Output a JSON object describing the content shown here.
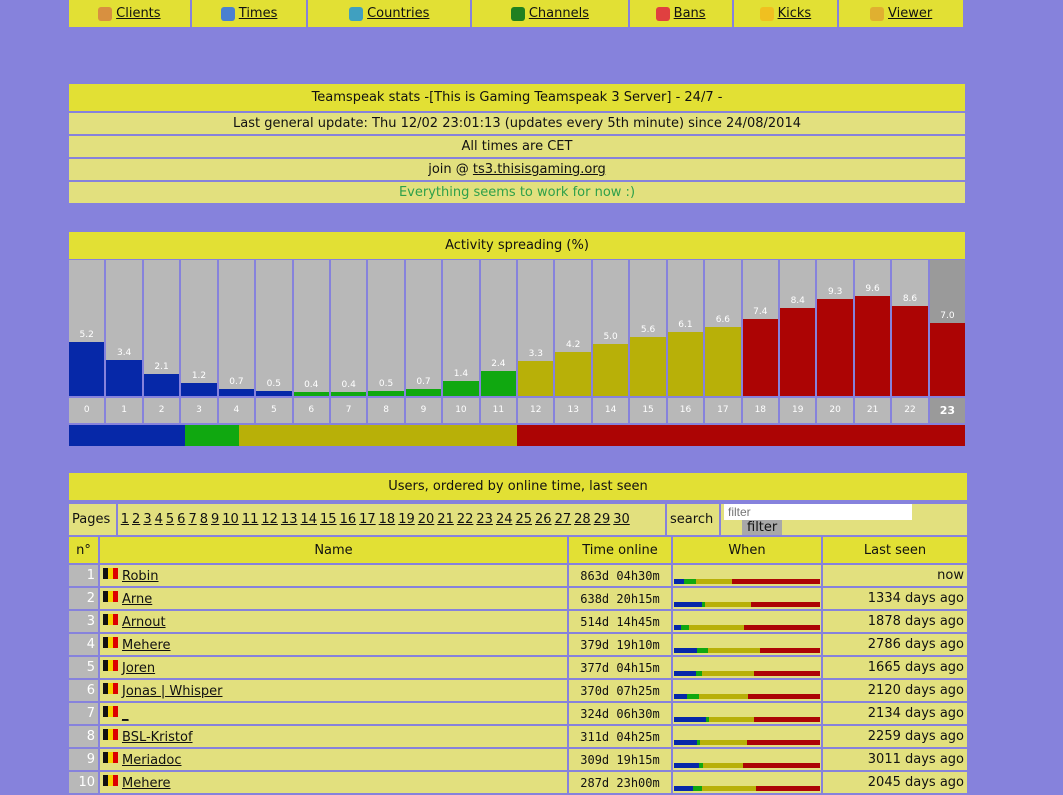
{
  "nav": [
    {
      "label": "Clients",
      "icon": "users-icon",
      "color": "#d89040"
    },
    {
      "label": "Times",
      "icon": "bar-chart-icon",
      "color": "#4a80d0"
    },
    {
      "label": "Countries",
      "icon": "globe-icon",
      "color": "#40a0c0"
    },
    {
      "label": "Channels",
      "icon": "channels-icon",
      "color": "#208020"
    },
    {
      "label": "Bans",
      "icon": "ban-icon",
      "color": "#e04040"
    },
    {
      "label": "Kicks",
      "icon": "warning-icon",
      "color": "#f0c020"
    },
    {
      "label": "Viewer",
      "icon": "magnifier-icon",
      "color": "#e0b030"
    }
  ],
  "info": {
    "title": "Teamspeak stats -[This is Gaming Teamspeak 3 Server] - 24/7 -",
    "update": "Last general update: Thu 12/02 23:01:13 (updates every 5th minute) since 24/08/2014",
    "tz": "All times are CET",
    "join_prefix": "join @ ",
    "join_link": "ts3.thisisgaming.org",
    "status": "Everything seems to work for now :)"
  },
  "chart_data": {
    "type": "bar",
    "title": "Activity spreading (%)",
    "categories": [
      "0",
      "1",
      "2",
      "3",
      "4",
      "5",
      "6",
      "7",
      "8",
      "9",
      "10",
      "11",
      "12",
      "13",
      "14",
      "15",
      "16",
      "17",
      "18",
      "19",
      "20",
      "21",
      "22",
      "23"
    ],
    "values": [
      5.2,
      3.4,
      2.1,
      1.2,
      0.7,
      0.5,
      0.4,
      0.4,
      0.5,
      0.7,
      1.4,
      2.4,
      3.3,
      4.2,
      5.0,
      5.6,
      6.1,
      6.6,
      7.4,
      8.4,
      9.3,
      9.6,
      8.6,
      7.0
    ],
    "ylim": [
      0,
      13
    ],
    "colors": {
      "night": "#0628a8",
      "morning": "#10a810",
      "afternoon": "#b8b008",
      "evening": "#ac0404"
    },
    "summary": [
      13,
      6,
      31,
      50
    ]
  },
  "users": {
    "title": "Users, ordered by online time, last seen",
    "pages_label": "Pages",
    "pages": [
      "1",
      "2",
      "3",
      "4",
      "5",
      "6",
      "7",
      "8",
      "9",
      "10",
      "11",
      "12",
      "13",
      "14",
      "15",
      "16",
      "17",
      "18",
      "19",
      "20",
      "21",
      "22",
      "23",
      "24",
      "25",
      "26",
      "27",
      "28",
      "29",
      "30"
    ],
    "search_label": "search",
    "filter_placeholder": "filter",
    "filter_button": "filter",
    "headers": [
      "n°",
      "Name",
      "Time online",
      "When",
      "Last seen"
    ],
    "rows": [
      {
        "n": "1",
        "name": "Robin",
        "time": "863d 04h30m",
        "when": [
          7,
          8,
          25,
          60
        ],
        "seen": "now"
      },
      {
        "n": "2",
        "name": "Arne",
        "time": "638d 20h15m",
        "when": [
          19,
          2,
          32,
          47
        ],
        "seen": "1334 days ago"
      },
      {
        "n": "3",
        "name": "Arnout",
        "time": "514d 14h45m",
        "when": [
          5,
          5,
          38,
          52
        ],
        "seen": "1878 days ago"
      },
      {
        "n": "4",
        "name": "Mehere",
        "time": "379d 19h10m",
        "when": [
          16,
          7,
          36,
          41
        ],
        "seen": "2786 days ago"
      },
      {
        "n": "5",
        "name": "Joren",
        "time": "377d 04h15m",
        "when": [
          15,
          4,
          36,
          45
        ],
        "seen": "1665 days ago"
      },
      {
        "n": "6",
        "name": "Jonas | Whisper",
        "time": "370d 07h25m",
        "when": [
          9,
          8,
          34,
          49
        ],
        "seen": "2120 days ago"
      },
      {
        "n": "7",
        "name": "_",
        "time": "324d 06h30m",
        "when": [
          22,
          2,
          31,
          45
        ],
        "seen": "2134 days ago"
      },
      {
        "n": "8",
        "name": "BSL-Kristof",
        "time": "311d 04h25m",
        "when": [
          16,
          2,
          32,
          50
        ],
        "seen": "2259 days ago"
      },
      {
        "n": "9",
        "name": "Meriadoc",
        "time": "309d 19h15m",
        "when": [
          17,
          3,
          27,
          53
        ],
        "seen": "3011 days ago"
      },
      {
        "n": "10",
        "name": "Mehere",
        "time": "287d 23h00m",
        "when": [
          13,
          6,
          37,
          44
        ],
        "seen": "2045 days ago"
      }
    ]
  }
}
